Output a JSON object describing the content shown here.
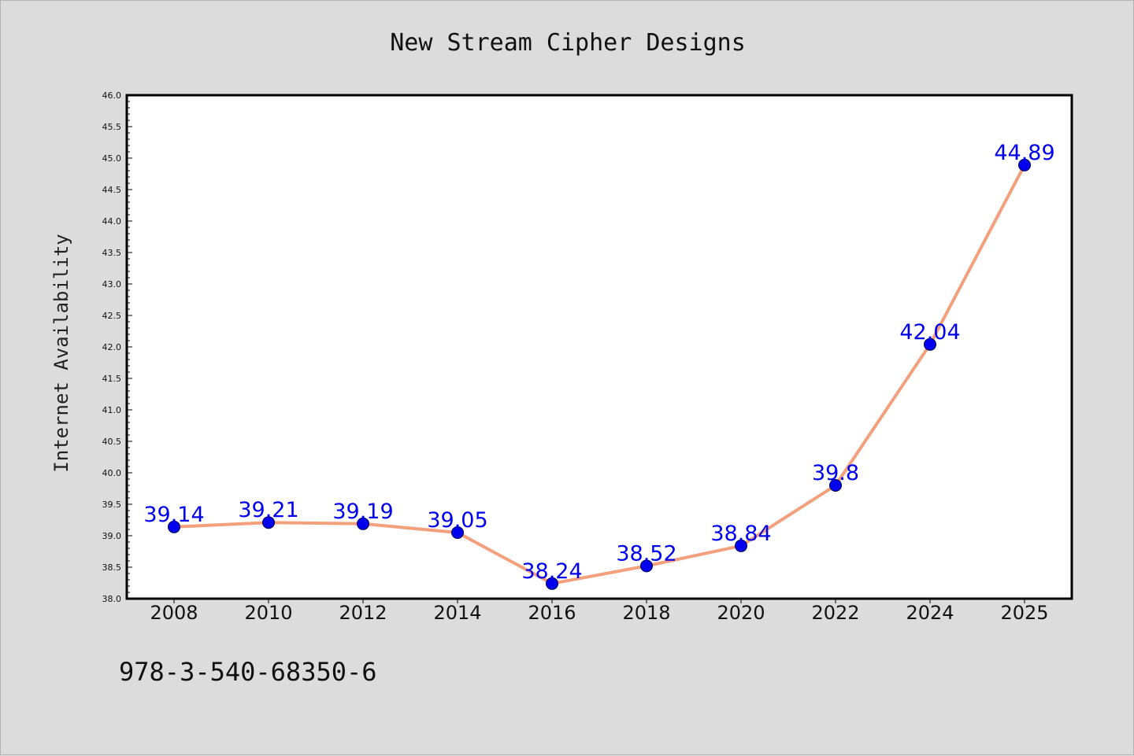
{
  "chart_data": {
    "type": "line",
    "title": "New Stream Cipher Designs",
    "xlabel": "",
    "ylabel": "Internet Availability",
    "categories": [
      "2008",
      "2010",
      "2012",
      "2014",
      "2016",
      "2018",
      "2020",
      "2022",
      "2024",
      "2025"
    ],
    "series": [
      {
        "values": [
          39.14,
          39.21,
          39.19,
          39.05,
          38.24,
          38.52,
          38.84,
          39.8,
          42.04,
          44.89
        ],
        "labels": [
          "39.14",
          "39.21",
          "39.19",
          "39.05",
          "38.24",
          "38.52",
          "38.84",
          "39.8",
          "42.04",
          "44.89"
        ],
        "line_color": "#f4a07c",
        "marker_color": "#0000ee",
        "label_color": "#0000ee"
      }
    ],
    "ylim": [
      38.0,
      46.0
    ],
    "yticks": [
      "38.0",
      "38.5",
      "39.0",
      "39.5",
      "40.0",
      "40.5",
      "41.0",
      "41.5",
      "42.0",
      "42.5",
      "43.0",
      "43.5",
      "44.0",
      "44.5",
      "45.0",
      "45.5",
      "46.0"
    ],
    "grid": false,
    "legend": "none"
  },
  "footer": {
    "text": "978-3-540-68350-6"
  },
  "colors": {
    "background": "#dcdcdc",
    "plot_background": "#ffffff",
    "axes": "#000000"
  }
}
